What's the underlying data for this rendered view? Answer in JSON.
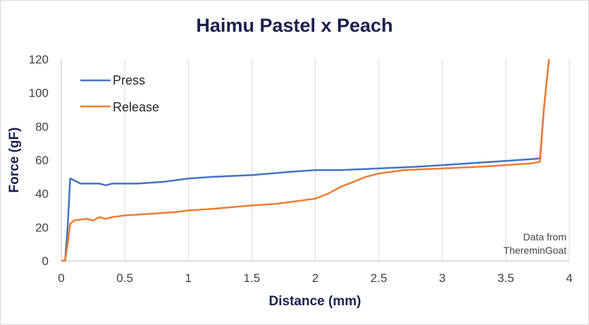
{
  "chart_data": {
    "type": "line",
    "title": "Haimu Pastel x Peach",
    "xlabel": "Distance (mm)",
    "ylabel": "Force (gF)",
    "xlim": [
      0,
      4
    ],
    "ylim": [
      0,
      120
    ],
    "xticks": [
      "0",
      "0.5",
      "1",
      "1.5",
      "2",
      "2.5",
      "3",
      "3.5",
      "4"
    ],
    "yticks": [
      "0",
      "20",
      "40",
      "60",
      "80",
      "100",
      "120"
    ],
    "grid": "vertical",
    "legend_position": "top-left",
    "annotation": [
      "Data from",
      "ThereminGoat"
    ],
    "series": [
      {
        "name": "Press",
        "color": "#4472c4",
        "x": [
          0,
          0.03,
          0.05,
          0.07,
          0.1,
          0.15,
          0.2,
          0.3,
          0.35,
          0.4,
          0.5,
          0.6,
          0.8,
          1.0,
          1.2,
          1.5,
          1.8,
          2.0,
          2.2,
          2.5,
          2.8,
          3.0,
          3.3,
          3.5,
          3.7,
          3.77,
          3.8,
          3.84
        ],
        "y": [
          0,
          0,
          20,
          49,
          48,
          46,
          46,
          46,
          45,
          46,
          46,
          46,
          47,
          49,
          50,
          51,
          53,
          54,
          54,
          55,
          56,
          57,
          58.5,
          59.5,
          60.5,
          61,
          90,
          120
        ]
      },
      {
        "name": "Release",
        "color": "#ed7d31",
        "x": [
          0,
          0.03,
          0.05,
          0.07,
          0.1,
          0.2,
          0.25,
          0.3,
          0.35,
          0.4,
          0.5,
          0.7,
          0.9,
          1.0,
          1.2,
          1.5,
          1.7,
          1.9,
          2.0,
          2.1,
          2.2,
          2.3,
          2.4,
          2.5,
          2.7,
          3.0,
          3.3,
          3.5,
          3.7,
          3.77,
          3.8,
          3.84
        ],
        "y": [
          0,
          0,
          10,
          22,
          24,
          25,
          24,
          26,
          25,
          26,
          27,
          28,
          29,
          30,
          31,
          33,
          34,
          36,
          37,
          40,
          44,
          47,
          50,
          52,
          54,
          55,
          56,
          57,
          58,
          59,
          90,
          120
        ]
      }
    ]
  }
}
